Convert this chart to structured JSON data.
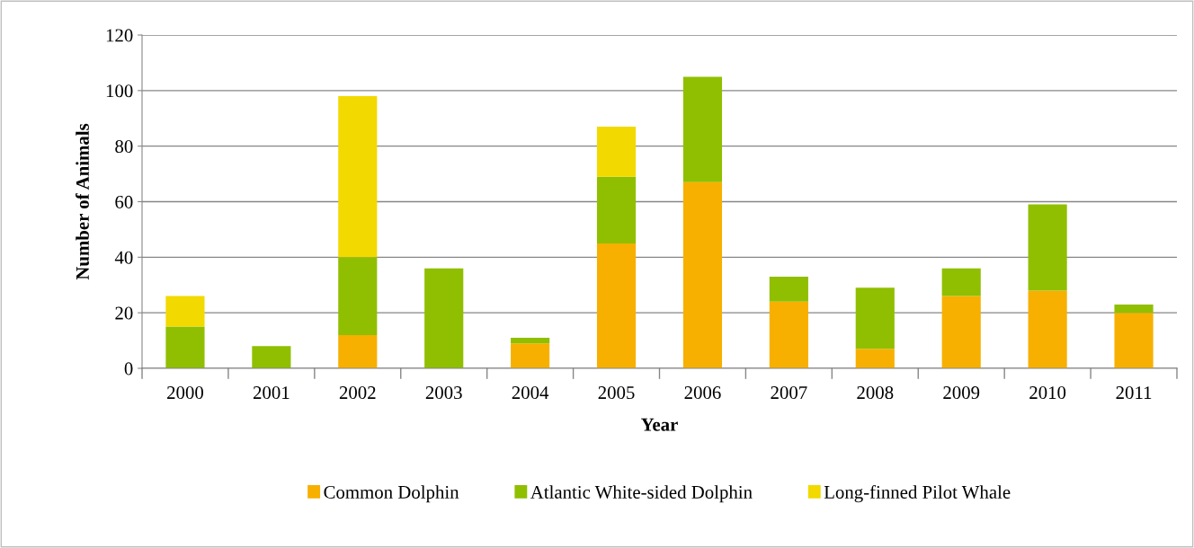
{
  "chart_data": {
    "type": "bar",
    "stacked": true,
    "xlabel": "Year",
    "ylabel": "Number of Animals",
    "categories": [
      "2000",
      "2001",
      "2002",
      "2003",
      "2004",
      "2005",
      "2006",
      "2007",
      "2008",
      "2009",
      "2010",
      "2011"
    ],
    "series": [
      {
        "name": "Common Dolphin",
        "color": "#f7b000",
        "values": [
          0,
          0,
          12,
          0,
          9,
          45,
          67,
          24,
          7,
          26,
          28,
          20
        ]
      },
      {
        "name": "Atlantic White-sided Dolphin",
        "color": "#8fbf00",
        "values": [
          15,
          8,
          28,
          36,
          2,
          24,
          38,
          9,
          22,
          10,
          31,
          3
        ]
      },
      {
        "name": "Long-finned Pilot Whale",
        "color": "#f2d900",
        "values": [
          11,
          0,
          58,
          0,
          0,
          18,
          0,
          0,
          0,
          0,
          0,
          0
        ]
      }
    ],
    "ylim": [
      0,
      120
    ],
    "yticks": [
      0,
      20,
      40,
      60,
      80,
      100,
      120
    ],
    "grid": "y",
    "legend": "bottom"
  }
}
